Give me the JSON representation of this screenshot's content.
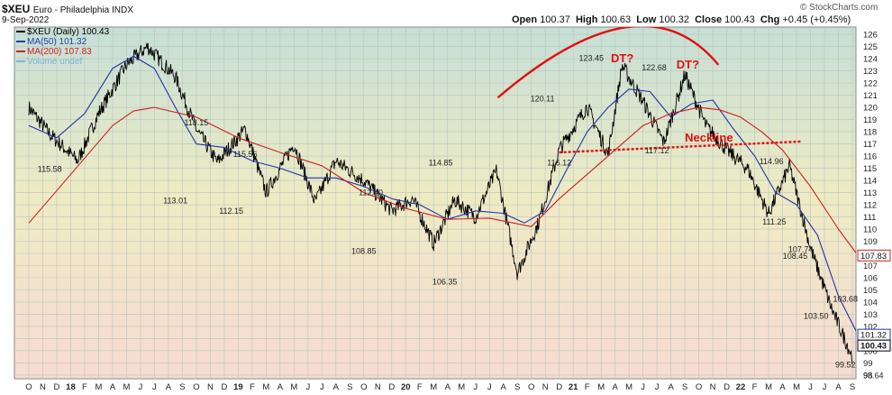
{
  "header": {
    "symbol": "$XEU",
    "name": "Euro - Philadelphia INDX",
    "date": "9-Sep-2022",
    "watermark": "© StockCharts.com",
    "quote": {
      "open_label": "Open",
      "open": "100.37",
      "high_label": "High",
      "high": "100.63",
      "low_label": "Low",
      "low": "100.32",
      "close_label": "Close",
      "close": "100.43",
      "chg_label": "Chg",
      "chg": "+0.45 (+0.45%)"
    }
  },
  "legend": [
    {
      "text": "$XEU (Daily) 100.43",
      "color": "#000000"
    },
    {
      "text": "MA(50) 101.32",
      "color": "#1f3fae"
    },
    {
      "text": "MA(200) 107.83",
      "color": "#d22020"
    },
    {
      "text": "Volume undef",
      "color": "#7fb3e0"
    }
  ],
  "colors": {
    "price": "#000000",
    "ma50": "#2233aa",
    "ma200": "#cc1f1f",
    "annotation": "#e01010",
    "bg_top": "#c8e0d8",
    "bg_mid": "#f0ecc4",
    "bg_bottom": "#f6dcd4"
  },
  "chart_data": {
    "type": "line",
    "title": "$XEU Euro - Philadelphia INDX",
    "ylim": [
      97.7,
      126.6
    ],
    "grid": true,
    "y_ticks": [
      98,
      99,
      100,
      101,
      102,
      103,
      104,
      105,
      106,
      107,
      108,
      109,
      110,
      111,
      112,
      113,
      114,
      115,
      116,
      117,
      118,
      119,
      120,
      121,
      122,
      123,
      124,
      125,
      126
    ],
    "x_ticks": [
      "O",
      "N",
      "D",
      "18",
      "F",
      "M",
      "A",
      "M",
      "J",
      "J",
      "A",
      "S",
      "O",
      "N",
      "D",
      "19",
      "F",
      "M",
      "A",
      "M",
      "J",
      "J",
      "A",
      "S",
      "O",
      "N",
      "D",
      "20",
      "F",
      "M",
      "A",
      "M",
      "J",
      "J",
      "A",
      "S",
      "O",
      "N",
      "D",
      "21",
      "F",
      "M",
      "A",
      "M",
      "J",
      "J",
      "A",
      "S",
      "O",
      "N",
      "D",
      "22",
      "F",
      "M",
      "A",
      "M",
      "J",
      "J",
      "A",
      "S"
    ],
    "series": [
      {
        "name": "$XEU (Daily)",
        "type": "price",
        "x": [
          0,
          1.5,
          3.5,
          5,
          7,
          8.5,
          10.5,
          12,
          13.5,
          15.5,
          17,
          19,
          20.5,
          22,
          24,
          26,
          27.5,
          29,
          30.5,
          32,
          33.5,
          35,
          36.5,
          38,
          40,
          41.5,
          42.5,
          44,
          45.5,
          47,
          48.5,
          50,
          51.5,
          53,
          54.5,
          56,
          57.5,
          59
        ],
        "values": [
          120,
          117.8,
          115.6,
          119.5,
          123.5,
          125,
          122.5,
          118.2,
          115.5,
          118.2,
          113,
          117,
          112.2,
          115.6,
          114,
          111.5,
          112.5,
          108.8,
          112.4,
          111,
          114.8,
          106.4,
          110.5,
          116.5,
          120.1,
          116.1,
          123.45,
          120.5,
          117.1,
          122.7,
          118.5,
          116.5,
          114.96,
          111.25,
          115.2,
          108.45,
          103.5,
          99.5
        ]
      },
      {
        "name": "MA(50)",
        "type": "ma",
        "x": [
          0,
          2,
          4,
          6,
          7.5,
          9,
          10.5,
          12,
          14,
          16,
          18,
          20,
          22,
          24,
          26,
          28,
          30,
          32,
          34,
          35.5,
          37,
          38.5,
          40,
          41.5,
          43,
          44.5,
          46,
          47.5,
          49,
          50.5,
          52,
          53.5,
          55,
          56.5,
          58,
          59.4
        ],
        "values": [
          118.5,
          117.5,
          119.5,
          123.2,
          124.2,
          123.2,
          120,
          117,
          116.7,
          115.6,
          115,
          114.2,
          114.2,
          113.5,
          112.5,
          112,
          110.8,
          111.5,
          111.3,
          110.5,
          111.5,
          114.8,
          118,
          120,
          121.5,
          121.3,
          119.2,
          120.3,
          120.6,
          118.2,
          116,
          113,
          112,
          109.5,
          104.5,
          101.32
        ]
      },
      {
        "name": "MA(200)",
        "type": "ma",
        "x": [
          0,
          3,
          6,
          7.5,
          9,
          12,
          15,
          18,
          21,
          24,
          27,
          30,
          33,
          36,
          38,
          40,
          42,
          44,
          46,
          48,
          49.5,
          51,
          52.5,
          54,
          56,
          58,
          59.4
        ],
        "values": [
          110.5,
          114.5,
          118.5,
          119.7,
          120,
          119.2,
          117.5,
          116.3,
          115.2,
          113,
          111.7,
          110.8,
          110.9,
          110.2,
          112.5,
          114.5,
          116.5,
          118.5,
          119.5,
          120,
          119.8,
          119.2,
          118,
          116.5,
          113.5,
          110,
          107.83
        ]
      }
    ],
    "point_labels": [
      {
        "x": 1.5,
        "y": 115.58,
        "text": "115.58",
        "pos": "below"
      },
      {
        "x": 12,
        "y": 118.15,
        "text": "118.15",
        "pos": "above"
      },
      {
        "x": 10.5,
        "y": 113.01,
        "text": "113.01",
        "pos": "below"
      },
      {
        "x": 15.5,
        "y": 115.56,
        "text": "115.56",
        "pos": "above"
      },
      {
        "x": 14.5,
        "y": 112.15,
        "text": "112.15",
        "pos": "below"
      },
      {
        "x": 24.5,
        "y": 112.4,
        "text": "112.40",
        "pos": "above"
      },
      {
        "x": 24,
        "y": 108.85,
        "text": "108.85",
        "pos": "below"
      },
      {
        "x": 29.5,
        "y": 114.85,
        "text": "114.85",
        "pos": "above"
      },
      {
        "x": 29.8,
        "y": 106.35,
        "text": "106.35",
        "pos": "below"
      },
      {
        "x": 36.8,
        "y": 120.11,
        "text": "120.11",
        "pos": "above"
      },
      {
        "x": 38,
        "y": 116.12,
        "text": "116.12",
        "pos": "below"
      },
      {
        "x": 40.3,
        "y": 123.45,
        "text": "123.45",
        "pos": "above"
      },
      {
        "x": 45,
        "y": 117.12,
        "text": "117.12",
        "pos": "below"
      },
      {
        "x": 44.8,
        "y": 122.68,
        "text": "122.68",
        "pos": "above"
      },
      {
        "x": 53.2,
        "y": 114.96,
        "text": "114.96",
        "pos": "above"
      },
      {
        "x": 53.4,
        "y": 111.25,
        "text": "111.25",
        "pos": "below"
      },
      {
        "x": 55.3,
        "y": 107.74,
        "text": "107.74",
        "pos": "above"
      },
      {
        "x": 54.9,
        "y": 108.45,
        "text": "108.45",
        "pos": "below"
      },
      {
        "x": 58.5,
        "y": 103.68,
        "text": "103.68",
        "pos": "above"
      },
      {
        "x": 56.4,
        "y": 103.5,
        "text": "103.50",
        "pos": "below"
      },
      {
        "x": 58.5,
        "y": 99.52,
        "text": "99.52",
        "pos": "below"
      },
      {
        "x": 60.5,
        "y": 98.64,
        "text": "98.64",
        "pos": "below"
      }
    ],
    "annotations": {
      "dt1": {
        "text": "DT?",
        "x": 41.7,
        "y": 123.7
      },
      "dt2": {
        "text": "DT?",
        "x": 46.4,
        "y": 123.2
      },
      "neckline_label": {
        "text": "Neckline",
        "x": 47,
        "y": 117.2
      },
      "neckline": {
        "x1": 38,
        "y1": 116.3,
        "x2": 55.4,
        "y2": 117.2
      },
      "arc": {
        "x1": 33.6,
        "y1": 120.8,
        "cx": 44,
        "cy": 131,
        "x2": 49.4,
        "y2": 123.5
      }
    },
    "last_values": [
      {
        "text": "107.83",
        "y": 107.83,
        "style": "ma200"
      },
      {
        "text": "101.32",
        "y": 101.32,
        "style": "ma50"
      },
      {
        "text": "100.43",
        "y": 100.43,
        "style": "price"
      }
    ]
  }
}
